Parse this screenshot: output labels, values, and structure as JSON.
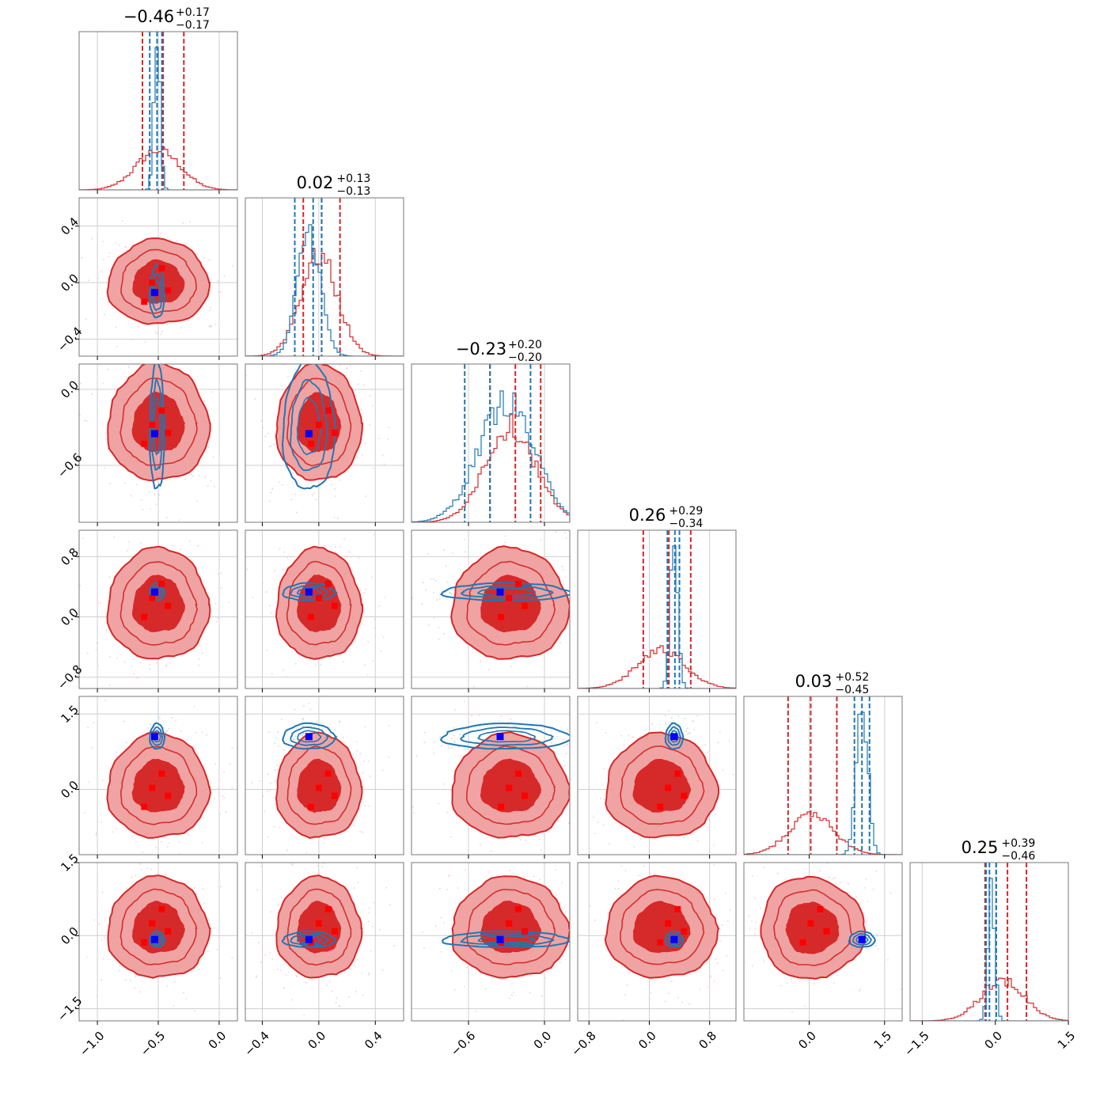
{
  "chart_data": {
    "type": "corner",
    "title": "",
    "params": [
      {
        "title": {
          "value": "−0.46",
          "upper": "+0.17",
          "lower": "−0.17"
        },
        "range": [
          -1.15,
          0.15
        ],
        "ticks": [
          {
            "v": -1.0,
            "label": "−1.0"
          },
          {
            "v": -0.5,
            "label": "−0.5"
          },
          {
            "v": 0.0,
            "label": "0.0"
          }
        ],
        "red_quantiles": [
          -0.63,
          -0.46,
          -0.29
        ],
        "blue_quantiles": [
          -0.57,
          -0.51,
          -0.47
        ],
        "red_center": -0.5,
        "red_sigma": 0.18,
        "blue_center": -0.51,
        "blue_sigma": 0.025,
        "truth_red": -0.55,
        "truth_blue": -0.53
      },
      {
        "title": {
          "value": "0.02",
          "upper": "+0.13",
          "lower": "−0.13"
        },
        "range": [
          -0.52,
          0.6
        ],
        "ticks": [
          {
            "v": -0.4,
            "label": "−0.4"
          },
          {
            "v": 0.0,
            "label": "0.0"
          },
          {
            "v": 0.4,
            "label": "0.4"
          }
        ],
        "red_quantiles": [
          -0.11,
          0.02,
          0.15
        ],
        "blue_quantiles": [
          -0.17,
          -0.04,
          0.02
        ],
        "red_center": 0.0,
        "red_sigma": 0.13,
        "blue_center": -0.07,
        "blue_sigma": 0.08,
        "truth_red": 0.0,
        "truth_blue": -0.07
      },
      {
        "title": {
          "value": "−0.23",
          "upper": "+0.20",
          "lower": "−0.20"
        },
        "range": [
          -1.05,
          0.2
        ],
        "ticks": [
          {
            "v": -0.6,
            "label": "−0.6"
          },
          {
            "v": 0.0,
            "label": "0.0"
          }
        ],
        "red_quantiles": [
          -0.43,
          -0.23,
          -0.03
        ],
        "blue_quantiles": [
          -0.63,
          -0.43,
          -0.11
        ],
        "red_center": -0.27,
        "red_sigma": 0.2,
        "blue_center": -0.3,
        "blue_sigma": 0.22,
        "truth_red": -0.28,
        "truth_blue": -0.35
      },
      {
        "title": {
          "value": "0.26",
          "upper": "+0.29",
          "lower": "−0.34"
        },
        "range": [
          -0.95,
          1.15
        ],
        "ticks": [
          {
            "v": -0.8,
            "label": "−0.8"
          },
          {
            "v": 0.0,
            "label": "0.0"
          },
          {
            "v": 0.8,
            "label": "0.8"
          }
        ],
        "red_quantiles": [
          -0.08,
          0.26,
          0.55
        ],
        "blue_quantiles": [
          0.24,
          0.34,
          0.4
        ],
        "red_center": 0.16,
        "red_sigma": 0.32,
        "blue_center": 0.33,
        "blue_sigma": 0.05,
        "truth_red": 0.25,
        "truth_blue": 0.33
      },
      {
        "title": {
          "value": "0.03",
          "upper": "+0.52",
          "lower": "−0.45"
        },
        "range": [
          -1.3,
          1.85
        ],
        "ticks": [
          {
            "v": 0.0,
            "label": "0.0"
          },
          {
            "v": 1.5,
            "label": "1.5"
          }
        ],
        "red_quantiles": [
          -0.42,
          0.03,
          0.55
        ],
        "blue_quantiles": [
          0.9,
          1.05,
          1.2
        ],
        "red_center": 0.05,
        "red_sigma": 0.45,
        "blue_center": 1.05,
        "blue_sigma": 0.11,
        "truth_red": 0.03,
        "truth_blue": 1.05
      },
      {
        "title": {
          "value": "0.25",
          "upper": "+0.39",
          "lower": "−0.46"
        },
        "range": [
          -1.75,
          1.5
        ],
        "ticks": [
          {
            "v": -1.5,
            "label": "−1.5"
          },
          {
            "v": 0.0,
            "label": "0.0"
          },
          {
            "v": 1.5,
            "label": "1.5"
          }
        ],
        "red_quantiles": [
          -0.21,
          0.25,
          0.64
        ],
        "blue_quantiles": [
          -0.19,
          -0.12,
          0.02
        ],
        "red_center": 0.15,
        "red_sigma": 0.45,
        "blue_center": -0.08,
        "blue_sigma": 0.07,
        "truth_red": 0.25,
        "truth_blue": -0.08
      }
    ],
    "y_ticks_rows": [
      null,
      [
        {
          "v": 0.4,
          "label": "0.4"
        },
        {
          "v": 0.0,
          "label": "0.0"
        },
        {
          "v": -0.4,
          "label": "−0.4"
        }
      ],
      [
        {
          "v": 0.0,
          "label": "0.0"
        },
        {
          "v": -0.6,
          "label": "−0.6"
        }
      ],
      [
        {
          "v": 0.8,
          "label": "0.8"
        },
        {
          "v": 0.0,
          "label": "0.0"
        },
        {
          "v": -0.8,
          "label": "−0.8"
        }
      ],
      [
        {
          "v": 1.5,
          "label": "1.5"
        },
        {
          "v": 0.0,
          "label": "0.0"
        }
      ],
      [
        {
          "v": 1.5,
          "label": "1.5"
        },
        {
          "v": 0.0,
          "label": "0.0"
        },
        {
          "v": -1.5,
          "label": "−1.5"
        }
      ]
    ],
    "series": [
      {
        "role": "red",
        "color": "#d62728",
        "fill_light": "#f0a3a3",
        "fill_dark": "#d62a2a"
      },
      {
        "role": "blue",
        "color": "#1f77b4"
      }
    ],
    "markers": {
      "red_color": "#ff0000",
      "blue_color": "#0000ff"
    },
    "grid": true,
    "legend": "none"
  }
}
